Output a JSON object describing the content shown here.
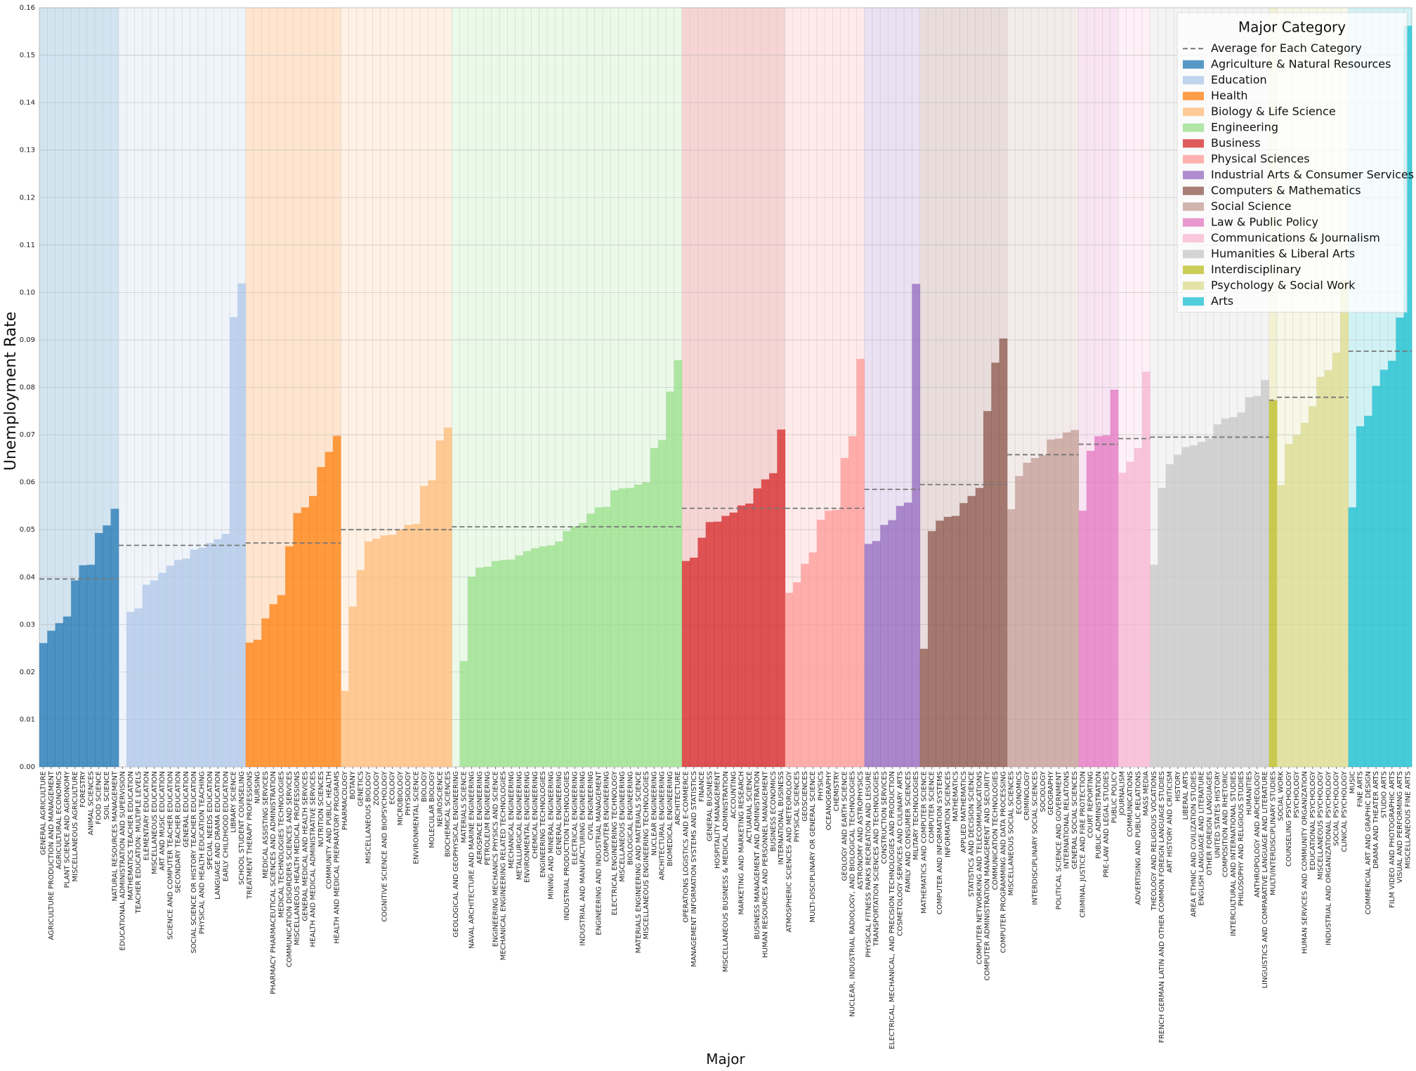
{
  "chart_data": {
    "type": "bar",
    "xlabel": "Major",
    "ylabel": "Unemployment Rate",
    "ylim": [
      0,
      0.16
    ],
    "yticks": [
      "0.00",
      "0.01",
      "0.02",
      "0.03",
      "0.04",
      "0.05",
      "0.06",
      "0.07",
      "0.08",
      "0.09",
      "0.10",
      "0.11",
      "0.12",
      "0.13",
      "0.14",
      "0.15",
      "0.16"
    ],
    "grid": true,
    "legend": {
      "title": "Major Category",
      "placement": "top-right",
      "avg_label": "Average for Each Category"
    },
    "groups": [
      {
        "name": "Agriculture & Natural Resources",
        "color": "#1f77b4",
        "avg": 0.0396,
        "majors": [
          "GENERAL AGRICULTURE",
          "AGRICULTURE PRODUCTION AND MANAGEMENT",
          "AGRICULTURAL ECONOMICS",
          "PLANT SCIENCE AND AGRONOMY",
          "MISCELLANEOUS AGRICULTURE",
          "FORESTRY",
          "ANIMAL SCIENCES",
          "FOOD SCIENCE",
          "SOIL SCIENCE",
          "NATURAL RESOURCES MANAGEMENT"
        ],
        "values": [
          0.0261,
          0.0287,
          0.0303,
          0.0317,
          0.0393,
          0.0425,
          0.0426,
          0.0493,
          0.0509,
          0.0544
        ]
      },
      {
        "name": "Education",
        "color": "#aec7e8",
        "avg": 0.0467,
        "majors": [
          "EDUCATIONAL ADMINISTRATION AND SUPERVISION",
          "MATHEMATICS TEACHER EDUCATION",
          "TEACHER EDUCATION: MULTIPLE LEVELS",
          "ELEMENTARY EDUCATION",
          "MISCELLANEOUS EDUCATION",
          "ART AND MUSIC EDUCATION",
          "SCIENCE AND COMPUTER TEACHER EDUCATION",
          "SECONDARY TEACHER EDUCATION",
          "GENERAL EDUCATION",
          "SOCIAL SCIENCE OR HISTORY TEACHER EDUCATION",
          "PHYSICAL AND HEALTH EDUCATION TEACHING",
          "SPECIAL NEEDS EDUCATION",
          "LANGUAGE AND DRAMA EDUCATION",
          "EARLY CHILDHOOD EDUCATION",
          "LIBRARY SCIENCE",
          "SCHOOL STUDENT COUNSELING"
        ],
        "values": [
          0.0,
          0.0327,
          0.0334,
          0.0384,
          0.0393,
          0.0409,
          0.0424,
          0.0436,
          0.0439,
          0.0458,
          0.0462,
          0.0472,
          0.048,
          0.0491,
          0.0948,
          0.1019
        ]
      },
      {
        "name": "Health",
        "color": "#ff7f0e",
        "avg": 0.0472,
        "majors": [
          "TREATMENT THERAPY PROFESSIONS",
          "NURSING",
          "MEDICAL ASSISTING SERVICES",
          "PHARMACY PHARMACEUTICAL SCIENCES AND ADMINISTRATION",
          "MEDICAL TECHNOLOGIES TECHNOLOGIES",
          "COMMUNICATION DISORDERS SCIENCES AND SERVICES",
          "MISCELLANEOUS HEALTH MEDICAL PROFESSIONS",
          "GENERAL MEDICAL AND HEALTH SERVICES",
          "HEALTH AND MEDICAL ADMINISTRATIVE SERVICES",
          "NUTRITION SCIENCES",
          "COMMUNITY AND PUBLIC HEALTH",
          "HEALTH AND MEDICAL PREPARATORY PROGRAMS"
        ],
        "values": [
          0.0262,
          0.0268,
          0.0313,
          0.0343,
          0.0362,
          0.0465,
          0.0535,
          0.0547,
          0.0571,
          0.0632,
          0.0664,
          0.0698
        ]
      },
      {
        "name": "Biology & Life Science",
        "color": "#ffbb78",
        "avg": 0.05,
        "majors": [
          "PHARMACOLOGY",
          "BOTANY",
          "GENETICS",
          "MISCELLANEOUS BIOLOGY",
          "ZOOLOGY",
          "COGNITIVE SCIENCE AND BIOPSYCHOLOGY",
          "ECOLOGY",
          "MICROBIOLOGY",
          "PHYSIOLOGY",
          "ENVIRONMENTAL SCIENCE",
          "BIOLOGY",
          "MOLECULAR BIOLOGY",
          "NEUROSCIENCE",
          "BIOCHEMICAL SCIENCES"
        ],
        "values": [
          0.016,
          0.0338,
          0.0415,
          0.0475,
          0.0481,
          0.0488,
          0.0489,
          0.05,
          0.051,
          0.0512,
          0.0592,
          0.0604,
          0.0688,
          0.0715
        ]
      },
      {
        "name": "Engineering",
        "color": "#98df8a",
        "avg": 0.0506,
        "majors": [
          "GEOLOGICAL AND GEOPHYSICAL ENGINEERING",
          "MATERIALS SCIENCE",
          "NAVAL ARCHITECTURE AND MARINE ENGINEERING",
          "AEROSPACE ENGINEERING",
          "PETROLEUM ENGINEERING",
          "ENGINEERING MECHANICS PHYSICS AND SCIENCE",
          "MECHANICAL ENGINEERING RELATED TECHNOLOGIES",
          "MECHANICAL ENGINEERING",
          "METALLURGICAL ENGINEERING",
          "ENVIRONMENTAL ENGINEERING",
          "CHEMICAL ENGINEERING",
          "ENGINEERING TECHNOLOGIES",
          "MINING AND MINERAL ENGINEERING",
          "GENERAL ENGINEERING",
          "INDUSTRIAL PRODUCTION TECHNOLOGIES",
          "ELECTRICAL ENGINEERING",
          "INDUSTRIAL AND MANUFACTURING ENGINEERING",
          "CIVIL ENGINEERING",
          "ENGINEERING AND INDUSTRIAL MANAGEMENT",
          "COMPUTER ENGINEERING",
          "ELECTRICAL ENGINEERING TECHNOLOGY",
          "MISCELLANEOUS ENGINEERING",
          "BIOLOGICAL ENGINEERING",
          "MATERIALS ENGINEERING AND MATERIALS SCIENCE",
          "MISCELLANEOUS ENGINEERING TECHNOLOGIES",
          "NUCLEAR ENGINEERING",
          "ARCHITECTURAL ENGINEERING",
          "BIOMEDICAL ENGINEERING",
          "ARCHITECTURE"
        ],
        "values": [
          0.0,
          0.0223,
          0.0401,
          0.042,
          0.0422,
          0.0434,
          0.0436,
          0.0437,
          0.0446,
          0.0455,
          0.0461,
          0.0465,
          0.0467,
          0.0475,
          0.0497,
          0.0506,
          0.0514,
          0.0534,
          0.0547,
          0.0548,
          0.0583,
          0.0587,
          0.0588,
          0.0595,
          0.06,
          0.0672,
          0.0689,
          0.0791,
          0.0857
        ]
      },
      {
        "name": "Business",
        "color": "#d62728",
        "avg": 0.0545,
        "majors": [
          "OPERATIONS LOGISTICS AND E-COMMERCE",
          "MANAGEMENT INFORMATION SYSTEMS AND STATISTICS",
          "FINANCE",
          "GENERAL BUSINESS",
          "HOSPITALITY MANAGEMENT",
          "MISCELLANEOUS BUSINESS & MEDICAL ADMINISTRATION",
          "ACCOUNTING",
          "MARKETING AND MARKETING RESEARCH",
          "ACTUARIAL SCIENCE",
          "BUSINESS MANAGEMENT AND ADMINISTRATION",
          "HUMAN RESOURCES AND PERSONNEL MANAGEMENT",
          "BUSINESS ECONOMICS",
          "INTERNATIONAL BUSINESS"
        ],
        "values": [
          0.0434,
          0.0441,
          0.0483,
          0.0516,
          0.0517,
          0.0529,
          0.0536,
          0.0551,
          0.0555,
          0.0587,
          0.0606,
          0.0619,
          0.0711
        ]
      },
      {
        "name": "Physical Sciences",
        "color": "#ff9896",
        "avg": 0.0545,
        "majors": [
          "ATMOSPHERIC SCIENCES AND METEOROLOGY",
          "PHYSICAL SCIENCES",
          "GEOSCIENCES",
          "MULTI-DISCIPLINARY OR GENERAL SCIENCE",
          "PHYSICS",
          "OCEANOGRAPHY",
          "CHEMISTRY",
          "GEOLOGY AND EARTH SCIENCE",
          "NUCLEAR, INDUSTRIAL RADIOLOGY, AND BIOLOGICAL TECHNOLOGIES",
          "ASTRONOMY AND ASTROPHYSICS"
        ],
        "values": [
          0.0367,
          0.0389,
          0.0428,
          0.0452,
          0.0521,
          0.054,
          0.0542,
          0.0651,
          0.0697,
          0.086
        ]
      },
      {
        "name": "Industrial Arts & Consumer Services",
        "color": "#9467bd",
        "avg": 0.0585,
        "majors": [
          "PHYSICAL FITNESS PARKS RECREATION AND LEISURE",
          "TRANSPORTATION SCIENCES AND TECHNOLOGIES",
          "CONSTRUCTION SERVICES",
          "ELECTRICAL, MECHANICAL, AND PRECISION TECHNOLOGIES AND PRODUCTION",
          "COSMETOLOGY SERVICES AND CULINARY ARTS",
          "FAMILY AND CONSUMER SCIENCES",
          "MILITARY TECHNOLOGIES"
        ],
        "values": [
          0.047,
          0.0476,
          0.051,
          0.052,
          0.055,
          0.0557,
          0.1018
        ]
      },
      {
        "name": "Computers & Mathematics",
        "color": "#8c564b",
        "avg": 0.0595,
        "majors": [
          "MATHEMATICS AND COMPUTER SCIENCE",
          "COMPUTER SCIENCE",
          "COMPUTER AND INFORMATION SYSTEMS",
          "INFORMATION SCIENCES",
          "MATHEMATICS",
          "APPLIED MATHEMATICS",
          "STATISTICS AND DECISION SCIENCE",
          "COMPUTER NETWORKING AND TELECOMMUNICATIONS",
          "COMPUTER ADMINISTRATION MANAGEMENT AND SECURITY",
          "COMMUNICATION TECHNOLOGIES",
          "COMPUTER PROGRAMMING AND DATA PROCESSING"
        ],
        "values": [
          0.0249,
          0.0497,
          0.0519,
          0.0527,
          0.0529,
          0.0556,
          0.0571,
          0.0588,
          0.075,
          0.0852,
          0.0903
        ]
      },
      {
        "name": "Social Science",
        "color": "#c49c94",
        "avg": 0.0658,
        "majors": [
          "MISCELLANEOUS SOCIAL SCIENCES",
          "ECONOMICS",
          "CRIMINOLOGY",
          "INTERDISCIPLINARY SOCIAL SCIENCES",
          "SOCIOLOGY",
          "GEOGRAPHY",
          "POLITICAL SCIENCE AND GOVERNMENT",
          "INTERNATIONAL RELATIONS",
          "GENERAL SOCIAL SCIENCES"
        ],
        "values": [
          0.0543,
          0.0613,
          0.0641,
          0.0651,
          0.0657,
          0.069,
          0.0692,
          0.0705,
          0.071
        ]
      },
      {
        "name": "Law & Public Policy",
        "color": "#e377c2",
        "avg": 0.068,
        "majors": [
          "CRIMINAL JUSTICE AND FIRE PROTECTION",
          "COURT REPORTING",
          "PUBLIC ADMINISTRATION",
          "PRE-LAW AND LEGAL STUDIES",
          "PUBLIC POLICY"
        ],
        "values": [
          0.054,
          0.0666,
          0.0697,
          0.0699,
          0.0795
        ]
      },
      {
        "name": "Communications & Journalism",
        "color": "#f7b6d2",
        "avg": 0.0692,
        "majors": [
          "JOURNALISM",
          "COMMUNICATIONS",
          "ADVERTISING AND PUBLIC RELATIONS",
          "MASS MEDIA"
        ],
        "values": [
          0.062,
          0.0643,
          0.0672,
          0.0833
        ]
      },
      {
        "name": "Humanities & Liberal Arts",
        "color": "#c7c7c7",
        "avg": 0.0695,
        "majors": [
          "THEOLOGY AND RELIGIOUS VOCATIONS",
          "FRENCH GERMAN LATIN AND OTHER COMMON FOREIGN LANGUAGE STUDIES",
          "ART HISTORY AND CRITICISM",
          "HISTORY",
          "LIBERAL ARTS",
          "AREA ETHNIC AND CIVILIZATION STUDIES",
          "ENGLISH LANGUAGE AND LITERATURE",
          "OTHER FOREIGN LANGUAGES",
          "UNITED STATES HISTORY",
          "COMPOSITION AND RHETORIC",
          "INTERCULTURAL AND INTERNATIONAL STUDIES",
          "PHILOSOPHY AND RELIGIOUS STUDIES",
          "HUMANITIES",
          "ANTHROPOLOGY AND ARCHEOLOGY",
          "LINGUISTICS AND COMPARATIVE LANGUAGE AND LITERATURE"
        ],
        "values": [
          0.0426,
          0.0588,
          0.0638,
          0.0658,
          0.0674,
          0.0678,
          0.0685,
          0.0692,
          0.0722,
          0.0734,
          0.0737,
          0.0747,
          0.0779,
          0.0782,
          0.0815
        ]
      },
      {
        "name": "Interdisciplinary",
        "color": "#bcbd22",
        "avg": 0.0773,
        "majors": [
          "MULTI/INTERDISCIPLINARY STUDIES"
        ],
        "values": [
          0.0773
        ]
      },
      {
        "name": "Psychology & Social Work",
        "color": "#dbdb8d",
        "avg": 0.0779,
        "majors": [
          "SOCIAL WORK",
          "COUNSELING PSYCHOLOGY",
          "PSYCHOLOGY",
          "HUMAN SERVICES AND COMMUNITY ORGANIZATION",
          "EDUCATIONAL PSYCHOLOGY",
          "MISCELLANEOUS PSYCHOLOGY",
          "INDUSTRIAL AND ORGANIZATIONAL PSYCHOLOGY",
          "SOCIAL PSYCHOLOGY",
          "CLINICAL PSYCHOLOGY"
        ],
        "values": [
          0.0594,
          0.0681,
          0.0699,
          0.0725,
          0.076,
          0.0822,
          0.0836,
          0.0873,
          0.1028
        ]
      },
      {
        "name": "Arts",
        "color": "#17becf",
        "avg": 0.0876,
        "majors": [
          "MUSIC",
          "FINE ARTS",
          "COMMERCIAL ART AND GRAPHIC DESIGN",
          "DRAMA AND THEATER ARTS",
          "STUDIO ARTS",
          "FILM VIDEO AND PHOTOGRAPHIC ARTS",
          "VISUAL AND PERFORMING ARTS",
          "MISCELLANEOUS FINE ARTS"
        ],
        "values": [
          0.0547,
          0.0718,
          0.074,
          0.0803,
          0.0837,
          0.0856,
          0.0947,
          0.1562
        ]
      }
    ]
  }
}
